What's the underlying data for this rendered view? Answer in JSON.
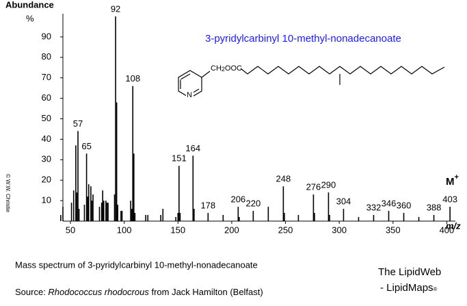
{
  "chart_data": {
    "type": "bar",
    "y_label": "Abundance",
    "y_unit": "%",
    "x_label": "m/z",
    "title": "3-pyridylcarbinyl 10-methyl-nonadecanoate",
    "structure": {
      "group_main": "CH",
      "group_sub": "2",
      "group_tail": "OOC",
      "ring_atom": "N"
    },
    "molecular_ion": {
      "main": "M",
      "sup": "+"
    },
    "x": [
      41,
      43,
      51,
      53,
      55,
      56,
      57,
      58,
      63,
      65,
      66,
      67,
      69,
      70,
      71,
      77,
      79,
      80,
      81,
      83,
      84,
      85,
      91,
      92,
      93,
      94,
      97,
      98,
      106,
      107,
      108,
      109,
      110,
      120,
      122,
      134,
      136,
      148,
      150,
      151,
      152,
      164,
      165,
      178,
      192,
      206,
      207,
      220,
      234,
      248,
      249,
      262,
      276,
      277,
      290,
      291,
      304,
      318,
      332,
      346,
      360,
      374,
      388,
      403
    ],
    "values": [
      3,
      7,
      9,
      15,
      37,
      14,
      44,
      6,
      8,
      33,
      12,
      18,
      17,
      10,
      13,
      7,
      9,
      15,
      10,
      10,
      9,
      9,
      13,
      100,
      58,
      8,
      5,
      5,
      10,
      6,
      66,
      33,
      4,
      3,
      3,
      3,
      6,
      2,
      4,
      27,
      4,
      32,
      6,
      4,
      3,
      7,
      2,
      5,
      7,
      17,
      4,
      3,
      13,
      4,
      14,
      3,
      6,
      2,
      3,
      5,
      4,
      2,
      3,
      7
    ],
    "peak_labels": [
      57,
      65,
      92,
      108,
      151,
      164,
      178,
      206,
      220,
      248,
      276,
      290,
      304,
      332,
      346,
      360,
      388,
      403
    ],
    "color": "#000000",
    "xlim": [
      43,
      408
    ],
    "ylim": [
      0,
      100
    ],
    "xticks": [
      50,
      100,
      150,
      200,
      250,
      300,
      350,
      400
    ],
    "yticks": [
      10,
      20,
      30,
      40,
      50,
      60,
      70,
      80,
      90
    ]
  },
  "copyright": "© W.W. Christie",
  "caption": "Mass spectrum of 3-pyridylcarbinyl 10-methyl-nonadecanoate",
  "source": {
    "prefix": "Source: ",
    "organism": "Rhodococcus rhodocrous",
    "suffix": " from Jack Hamilton (Belfast)"
  },
  "brand": {
    "line1": "The LipidWeb",
    "line2": "- LipidMaps",
    "mark": "®"
  }
}
